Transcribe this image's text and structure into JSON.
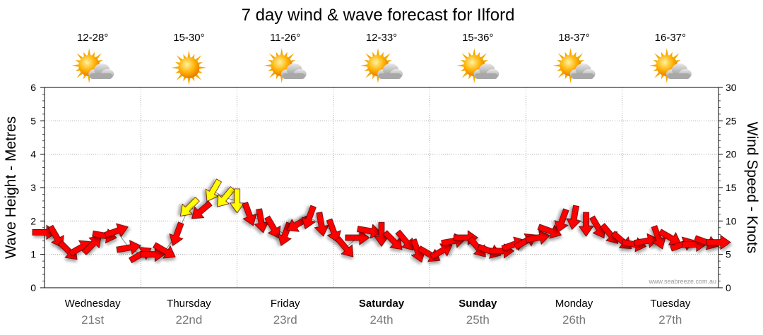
{
  "chart_data": {
    "type": "line",
    "title": "7 day wind & wave forecast for Ilford",
    "ylabel_left": "Wave Height - Metres",
    "ylabel_right": "Wind Speed - Knots",
    "ylim_left": [
      0,
      6
    ],
    "ylim_right": [
      0,
      30
    ],
    "left_ticks": [
      "0",
      "1",
      "2",
      "3",
      "4",
      "5",
      "6"
    ],
    "right_ticks": [
      "0",
      "5",
      "10",
      "15",
      "20",
      "25",
      "30"
    ],
    "grid": true,
    "credit": "www.seabreeze.com.au",
    "colors": {
      "strong": "#ff0000",
      "light": "#ffff00",
      "grid": "#999999"
    },
    "days": [
      {
        "name": "Wednesday",
        "date": "21st",
        "bold": false,
        "temp": "12-28°",
        "icon": "sun-cloud-icon"
      },
      {
        "name": "Thursday",
        "date": "22nd",
        "bold": false,
        "temp": "15-30°",
        "icon": "sun-icon"
      },
      {
        "name": "Friday",
        "date": "23rd",
        "bold": false,
        "temp": "11-26°",
        "icon": "sun-cloud-icon"
      },
      {
        "name": "Saturday",
        "date": "24th",
        "bold": true,
        "temp": "12-33°",
        "icon": "sun-cloud-icon"
      },
      {
        "name": "Sunday",
        "date": "25th",
        "bold": true,
        "temp": "15-36°",
        "icon": "sun-cloud-icon"
      },
      {
        "name": "Monday",
        "date": "26th",
        "bold": false,
        "temp": "18-37°",
        "icon": "sun-cloud-icon"
      },
      {
        "name": "Tuesday",
        "date": "27th",
        "bold": false,
        "temp": "16-37°",
        "icon": "sun-cloud-icon"
      }
    ],
    "x_hours": [
      0,
      3,
      6,
      9,
      12,
      15,
      18,
      21,
      24,
      27,
      30,
      33,
      36,
      39,
      42,
      45,
      48,
      51,
      54,
      57,
      60,
      63,
      66,
      69,
      72,
      75,
      78,
      81,
      84,
      87,
      90,
      93,
      96,
      99,
      102,
      105,
      108,
      111,
      114,
      117,
      120,
      123,
      126,
      129,
      132,
      135,
      138,
      141,
      144,
      147,
      150,
      153,
      156,
      159,
      162,
      165,
      168
    ],
    "wind_knots": [
      8.3,
      7.6,
      5.5,
      6.0,
      6.5,
      7.8,
      8.5,
      6.0,
      5.0,
      5.0,
      5.5,
      8.0,
      12.0,
      11.5,
      14.5,
      13.5,
      13.0,
      11.0,
      10.0,
      9.0,
      8.0,
      9.5,
      10.5,
      9.5,
      8.5,
      6.0,
      7.5,
      8.5,
      8.0,
      7.0,
      7.0,
      5.5,
      5.0,
      5.5,
      7.0,
      7.5,
      6.0,
      5.5,
      5.5,
      6.5,
      7.0,
      7.5,
      8.5,
      10.0,
      10.5,
      9.5,
      9.0,
      8.0,
      7.0,
      6.5,
      7.0,
      7.5,
      7.5,
      6.5,
      6.5,
      6.8,
      6.8
    ],
    "wind_direction_deg": [
      90,
      150,
      135,
      60,
      45,
      100,
      70,
      80,
      60,
      90,
      120,
      200,
      225,
      230,
      210,
      220,
      180,
      160,
      170,
      150,
      200,
      240,
      200,
      170,
      160,
      140,
      90,
      100,
      180,
      135,
      140,
      160,
      120,
      60,
      80,
      90,
      140,
      110,
      90,
      70,
      60,
      80,
      110,
      200,
      190,
      180,
      150,
      140,
      130,
      100,
      80,
      160,
      120,
      70,
      90,
      110,
      90
    ]
  }
}
